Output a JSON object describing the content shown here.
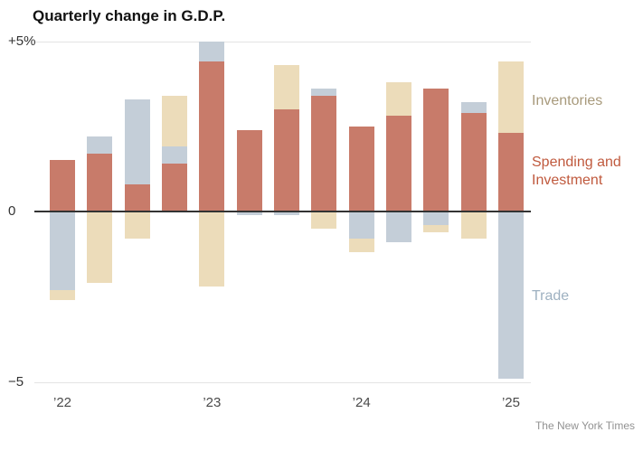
{
  "title": "Quarterly change in G.D.P.",
  "credit": "The New York Times",
  "chart_data": {
    "type": "bar",
    "stacked": true,
    "title": "Quarterly change in G.D.P.",
    "unit": "percentage points of G.D.P. change",
    "ylim": [
      -5,
      5
    ],
    "grid": "horizontal at labeled ticks, zero line emphasized",
    "legend_position": "right",
    "y_ticks": [
      {
        "value": 5,
        "label": "+5%"
      },
      {
        "value": 0,
        "label": "0"
      },
      {
        "value": -5,
        "label": "−5"
      }
    ],
    "x_ticks": [
      {
        "label": "’22",
        "bar_index": 0
      },
      {
        "label": "’23",
        "bar_index": 4
      },
      {
        "label": "’24",
        "bar_index": 8
      },
      {
        "label": "’25",
        "bar_index": 12
      }
    ],
    "series_meta": {
      "spending": {
        "label": "Spending and Investment",
        "color": "#c87b6a",
        "label_color": "#c05a3e"
      },
      "inventories": {
        "label": "Inventories",
        "color": "#ecdcba",
        "label_color": "#a89a7c"
      },
      "trade": {
        "label": "Trade",
        "color": "#c4ced8",
        "label_color": "#9eb1c1"
      }
    },
    "quarters": [
      {
        "label": "2022 Q1",
        "segments": [
          {
            "series": "spending",
            "value": 1.5
          },
          {
            "series": "trade",
            "value": -2.3
          },
          {
            "series": "inventories",
            "value": -0.3
          }
        ]
      },
      {
        "label": "2022 Q2",
        "segments": [
          {
            "series": "spending",
            "value": 1.7
          },
          {
            "series": "trade",
            "value": 0.5
          },
          {
            "series": "inventories",
            "value": -2.1
          }
        ]
      },
      {
        "label": "2022 Q3",
        "segments": [
          {
            "series": "spending",
            "value": 0.8
          },
          {
            "series": "trade",
            "value": 2.5
          },
          {
            "series": "inventories",
            "value": -0.8
          }
        ]
      },
      {
        "label": "2022 Q4",
        "segments": [
          {
            "series": "spending",
            "value": 1.4
          },
          {
            "series": "trade",
            "value": 0.5
          },
          {
            "series": "inventories",
            "value": 1.5
          }
        ]
      },
      {
        "label": "2023 Q1",
        "segments": [
          {
            "series": "spending",
            "value": 4.4
          },
          {
            "series": "trade",
            "value": 0.6
          },
          {
            "series": "inventories",
            "value": -2.2
          }
        ]
      },
      {
        "label": "2023 Q2",
        "segments": [
          {
            "series": "spending",
            "value": 2.4
          },
          {
            "series": "trade",
            "value": -0.1
          }
        ]
      },
      {
        "label": "2023 Q3",
        "segments": [
          {
            "series": "spending",
            "value": 3.0
          },
          {
            "series": "inventories",
            "value": 1.3
          },
          {
            "series": "trade",
            "value": -0.1
          }
        ]
      },
      {
        "label": "2023 Q4",
        "segments": [
          {
            "series": "spending",
            "value": 3.4
          },
          {
            "series": "trade",
            "value": 0.2
          },
          {
            "series": "inventories",
            "value": -0.5
          }
        ]
      },
      {
        "label": "2024 Q1",
        "segments": [
          {
            "series": "spending",
            "value": 2.5
          },
          {
            "series": "trade",
            "value": -0.8
          },
          {
            "series": "inventories",
            "value": -0.4
          }
        ]
      },
      {
        "label": "2024 Q2",
        "segments": [
          {
            "series": "spending",
            "value": 2.8
          },
          {
            "series": "inventories",
            "value": 1.0
          },
          {
            "series": "trade",
            "value": -0.9
          }
        ]
      },
      {
        "label": "2024 Q3",
        "segments": [
          {
            "series": "spending",
            "value": 3.6
          },
          {
            "series": "trade",
            "value": -0.4
          },
          {
            "series": "inventories",
            "value": -0.2
          }
        ]
      },
      {
        "label": "2024 Q4",
        "segments": [
          {
            "series": "spending",
            "value": 2.9
          },
          {
            "series": "trade",
            "value": 0.3
          },
          {
            "series": "inventories",
            "value": -0.8
          }
        ]
      },
      {
        "label": "2025 Q1",
        "segments": [
          {
            "series": "spending",
            "value": 2.3
          },
          {
            "series": "inventories",
            "value": 2.1
          },
          {
            "series": "trade",
            "value": -4.9
          }
        ]
      }
    ]
  }
}
